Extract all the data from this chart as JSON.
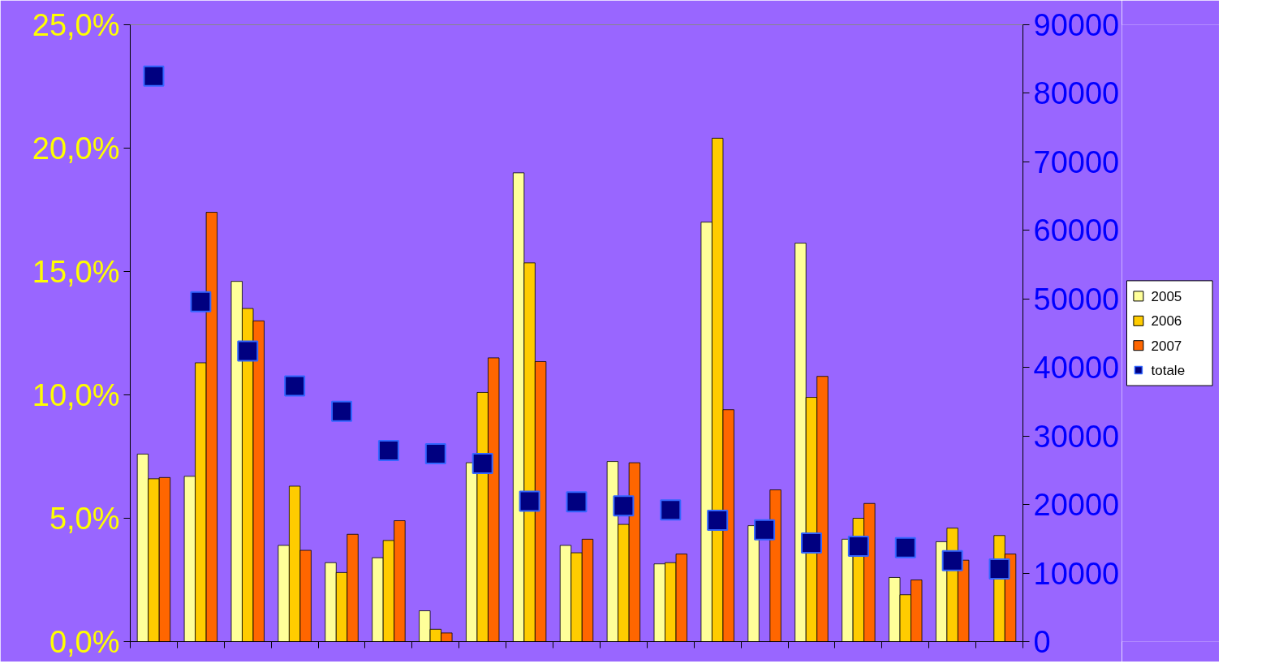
{
  "chart_data": {
    "type": "bar",
    "categories": [
      null,
      null,
      null,
      null,
      null,
      null,
      null,
      null,
      null,
      null,
      null,
      null,
      null,
      null,
      null,
      null,
      null,
      null,
      null
    ],
    "series": [
      {
        "name": "2005",
        "color": "#ffff99",
        "values": [
          7.6,
          6.7,
          14.6,
          3.9,
          3.2,
          3.4,
          1.25,
          7.25,
          19.0,
          3.9,
          7.3,
          3.15,
          17.0,
          4.7,
          16.15,
          4.15,
          2.6,
          4.05,
          null
        ]
      },
      {
        "name": "2006",
        "color": "#ffcc00",
        "values": [
          6.6,
          11.3,
          13.5,
          6.3,
          2.8,
          4.1,
          0.5,
          10.1,
          15.35,
          3.6,
          4.75,
          3.2,
          20.4,
          null,
          9.9,
          5.0,
          1.9,
          4.6,
          4.3
        ]
      },
      {
        "name": "2007",
        "color": "#ff6600",
        "values": [
          6.65,
          17.4,
          13.0,
          3.7,
          4.35,
          4.9,
          0.35,
          11.5,
          11.35,
          4.15,
          7.25,
          3.55,
          9.4,
          6.15,
          10.75,
          5.6,
          2.5,
          3.3,
          3.55
        ]
      },
      {
        "name": "totale",
        "type": "scatter",
        "axis": "y2",
        "marker": "square",
        "color": "#000080",
        "values": [
          82500,
          49600,
          42400,
          37300,
          33600,
          27900,
          27400,
          26000,
          20500,
          20400,
          19800,
          19200,
          17700,
          16300,
          14400,
          13900,
          13700,
          11800,
          10600
        ]
      }
    ],
    "ylim": [
      0,
      25
    ],
    "yticks": [
      {
        "value": 0,
        "label": "0,0%"
      },
      {
        "value": 5,
        "label": "5,0%"
      },
      {
        "value": 10,
        "label": "10,0%"
      },
      {
        "value": 15,
        "label": "15,0%"
      },
      {
        "value": 20,
        "label": "20,0%"
      },
      {
        "value": 25,
        "label": "25,0%"
      }
    ],
    "y2lim": [
      0,
      90000
    ],
    "y2ticks": [
      0,
      10000,
      20000,
      30000,
      40000,
      50000,
      60000,
      70000,
      80000,
      90000
    ],
    "legend": "right",
    "grid": false
  }
}
